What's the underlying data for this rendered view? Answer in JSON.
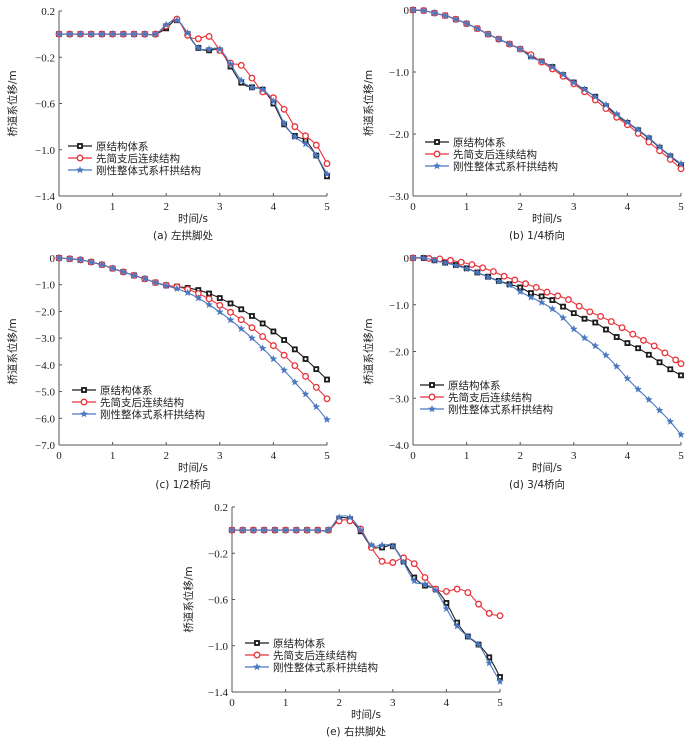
{
  "legend": [
    {
      "name": "原结构体系",
      "color": "#1a1a1a",
      "marker": "square"
    },
    {
      "name": "先简支后连续结构",
      "color": "#e8333a",
      "marker": "circle"
    },
    {
      "name": "刚性整体式系杆拱结构",
      "color": "#4a78c0",
      "marker": "star"
    }
  ],
  "chart_data": [
    {
      "type": "line",
      "caption": "(a)   左拱脚处",
      "xlabel": "时间/s",
      "ylabel": "桥道系位移/m",
      "xlim": [
        0,
        5
      ],
      "ylim": [
        -1.4,
        0.2
      ],
      "xticks": [
        0,
        1,
        2,
        3,
        4,
        5
      ],
      "xtick_labels": [
        "0",
        "1",
        "2",
        "3",
        "4",
        "5"
      ],
      "yticks": [
        0.2,
        -0.2,
        -0.6,
        -1.0,
        -1.4
      ],
      "ytick_labels": [
        "0.2",
        "−0.2",
        "−0.6",
        "−1.0",
        "−1.4"
      ],
      "legend_position": "lower-left",
      "x": [
        0,
        0.2,
        0.4,
        0.6,
        0.8,
        1.0,
        1.2,
        1.4,
        1.6,
        1.8,
        2.0,
        2.2,
        2.4,
        2.6,
        2.8,
        3.0,
        3.2,
        3.4,
        3.6,
        3.8,
        4.0,
        4.2,
        4.4,
        4.6,
        4.8,
        5.0
      ],
      "series": [
        {
          "name": "原结构体系",
          "values": [
            0,
            0,
            0,
            0,
            0,
            0,
            0,
            0,
            0,
            0,
            0.05,
            0.12,
            0.0,
            -0.12,
            -0.14,
            -0.14,
            -0.28,
            -0.42,
            -0.46,
            -0.48,
            -0.6,
            -0.78,
            -0.88,
            -0.92,
            -1.05,
            -1.23
          ]
        },
        {
          "name": "先简支后连续结构",
          "values": [
            0,
            0,
            0,
            0,
            0,
            0,
            0,
            0,
            0,
            0,
            0.07,
            0.13,
            -0.01,
            -0.04,
            -0.02,
            -0.14,
            -0.25,
            -0.27,
            -0.38,
            -0.5,
            -0.55,
            -0.65,
            -0.8,
            -0.88,
            -0.96,
            -1.12
          ]
        },
        {
          "name": "刚性整体式系杆拱结构",
          "values": [
            0,
            0,
            0,
            0,
            0,
            0,
            0,
            0,
            0,
            0,
            0.08,
            0.12,
            0.01,
            -0.12,
            -0.13,
            -0.13,
            -0.26,
            -0.4,
            -0.46,
            -0.48,
            -0.58,
            -0.77,
            -0.89,
            -0.95,
            -1.05,
            -1.21
          ]
        }
      ]
    },
    {
      "type": "line",
      "caption": "(b)   1/4桥向",
      "xlabel": "时间/s",
      "ylabel": "桥道系位移/m",
      "xlim": [
        0,
        5
      ],
      "ylim": [
        -3.0,
        0
      ],
      "xticks": [
        0,
        1,
        2,
        3,
        4,
        5
      ],
      "xtick_labels": [
        "0",
        "1",
        "2",
        "3",
        "4",
        "5"
      ],
      "yticks": [
        0,
        -1.0,
        -2.0,
        -3.0
      ],
      "ytick_labels": [
        "0",
        "−1.0",
        "−2.0",
        "−3.0"
      ],
      "legend_position": "lower-left",
      "x": [
        0,
        0.2,
        0.4,
        0.6,
        0.8,
        1.0,
        1.2,
        1.4,
        1.6,
        1.8,
        2.0,
        2.2,
        2.4,
        2.6,
        2.8,
        3.0,
        3.2,
        3.4,
        3.6,
        3.8,
        4.0,
        4.2,
        4.4,
        4.6,
        4.8,
        5.0
      ],
      "series": [
        {
          "name": "原结构体系",
          "values": [
            0,
            -0.01,
            -0.05,
            -0.09,
            -0.15,
            -0.22,
            -0.3,
            -0.39,
            -0.47,
            -0.55,
            -0.63,
            -0.74,
            -0.83,
            -0.92,
            -1.05,
            -1.17,
            -1.29,
            -1.4,
            -1.55,
            -1.7,
            -1.82,
            -1.94,
            -2.07,
            -2.22,
            -2.36,
            -2.5
          ]
        },
        {
          "name": "先简支后连续结构",
          "values": [
            0,
            -0.01,
            -0.05,
            -0.09,
            -0.15,
            -0.22,
            -0.3,
            -0.39,
            -0.47,
            -0.55,
            -0.63,
            -0.72,
            -0.84,
            -0.95,
            -1.07,
            -1.19,
            -1.32,
            -1.45,
            -1.59,
            -1.73,
            -1.85,
            -1.99,
            -2.13,
            -2.27,
            -2.41,
            -2.56
          ]
        },
        {
          "name": "刚性整体式系杆拱结构",
          "values": [
            0,
            -0.01,
            -0.05,
            -0.09,
            -0.15,
            -0.22,
            -0.3,
            -0.39,
            -0.47,
            -0.55,
            -0.63,
            -0.76,
            -0.83,
            -0.92,
            -1.04,
            -1.17,
            -1.28,
            -1.4,
            -1.53,
            -1.68,
            -1.81,
            -1.93,
            -2.06,
            -2.21,
            -2.35,
            -2.48
          ]
        }
      ]
    },
    {
      "type": "line",
      "caption": "(c)   1/2桥向",
      "xlabel": "时间/s",
      "ylabel": "桥道系位移/m",
      "xlim": [
        0,
        5
      ],
      "ylim": [
        -7.0,
        0
      ],
      "xticks": [
        0,
        1,
        2,
        3,
        4,
        5
      ],
      "xtick_labels": [
        "0",
        "1",
        "2",
        "3",
        "4",
        "5"
      ],
      "yticks": [
        0,
        -1.0,
        -2.0,
        -3.0,
        -4.0,
        -5.0,
        -6.0,
        -7.0
      ],
      "ytick_labels": [
        "0",
        "−1.0",
        "−2.0",
        "−3.0",
        "−4.0",
        "−5.0",
        "−6.0",
        "−7.0"
      ],
      "legend_position": "lower-left",
      "x": [
        0,
        0.2,
        0.4,
        0.6,
        0.8,
        1.0,
        1.2,
        1.4,
        1.6,
        1.8,
        2.0,
        2.2,
        2.4,
        2.6,
        2.8,
        3.0,
        3.2,
        3.4,
        3.6,
        3.8,
        4.0,
        4.2,
        4.4,
        4.6,
        4.8,
        5.0
      ],
      "series": [
        {
          "name": "原结构体系",
          "values": [
            0,
            -0.03,
            -0.07,
            -0.15,
            -0.25,
            -0.39,
            -0.52,
            -0.65,
            -0.78,
            -0.92,
            -1.02,
            -1.07,
            -1.12,
            -1.2,
            -1.33,
            -1.5,
            -1.7,
            -1.92,
            -2.17,
            -2.45,
            -2.75,
            -3.07,
            -3.42,
            -3.78,
            -4.16,
            -4.55
          ]
        },
        {
          "name": "先简支后连续结构",
          "values": [
            0,
            -0.03,
            -0.07,
            -0.15,
            -0.25,
            -0.39,
            -0.52,
            -0.65,
            -0.78,
            -0.92,
            -1.02,
            -1.08,
            -1.17,
            -1.33,
            -1.53,
            -1.77,
            -2.03,
            -2.31,
            -2.61,
            -2.94,
            -3.28,
            -3.64,
            -4.03,
            -4.43,
            -4.84,
            -5.27
          ]
        },
        {
          "name": "刚性整体式系杆拱结构",
          "values": [
            0,
            -0.03,
            -0.07,
            -0.15,
            -0.25,
            -0.39,
            -0.52,
            -0.65,
            -0.78,
            -0.92,
            -1.04,
            -1.15,
            -1.3,
            -1.5,
            -1.75,
            -2.02,
            -2.32,
            -2.65,
            -3.0,
            -3.38,
            -3.78,
            -4.2,
            -4.65,
            -5.1,
            -5.57,
            -6.05
          ]
        }
      ]
    },
    {
      "type": "line",
      "caption": "(d)   3/4桥向",
      "xlabel": "时间/s",
      "ylabel": "桥道系位移/m",
      "xlim": [
        0,
        5
      ],
      "ylim": [
        -4.0,
        0
      ],
      "xticks": [
        0,
        1,
        2,
        3,
        4,
        5
      ],
      "xtick_labels": [
        "0",
        "1",
        "2",
        "3",
        "4",
        "5"
      ],
      "yticks": [
        0,
        -1.0,
        -2.0,
        -3.0,
        -4.0
      ],
      "ytick_labels": [
        "0",
        "−1.0",
        "−2.0",
        "−3.0",
        "−4.0"
      ],
      "legend_position": "lower-left",
      "x": [
        0,
        0.2,
        0.4,
        0.6,
        0.8,
        1.0,
        1.2,
        1.4,
        1.6,
        1.8,
        2.0,
        2.2,
        2.4,
        2.6,
        2.8,
        3.0,
        3.2,
        3.4,
        3.6,
        3.8,
        4.0,
        4.2,
        4.4,
        4.6,
        4.8,
        5.0
      ],
      "series": [
        {
          "name": "原结构体系",
          "values": [
            0,
            0,
            -0.05,
            -0.1,
            -0.15,
            -0.22,
            -0.31,
            -0.4,
            -0.49,
            -0.56,
            -0.63,
            -0.75,
            -0.82,
            -0.9,
            -1.04,
            -1.18,
            -1.3,
            -1.38,
            -1.53,
            -1.69,
            -1.82,
            -1.93,
            -2.07,
            -2.23,
            -2.38,
            -2.51
          ]
        },
        {
          "name": "先简支后连续结构",
          "x": [
            0,
            0.3,
            0.5,
            0.7,
            0.9,
            1.1,
            1.3,
            1.5,
            1.7,
            1.9,
            2.1,
            2.3,
            2.5,
            2.7,
            2.9,
            3.1,
            3.3,
            3.5,
            3.7,
            3.9,
            4.1,
            4.3,
            4.5,
            4.7,
            4.9,
            5.0
          ],
          "values": [
            0,
            -0.01,
            -0.02,
            -0.05,
            -0.09,
            -0.14,
            -0.21,
            -0.29,
            -0.39,
            -0.47,
            -0.55,
            -0.63,
            -0.73,
            -0.81,
            -0.89,
            -1.03,
            -1.15,
            -1.25,
            -1.36,
            -1.49,
            -1.63,
            -1.76,
            -1.88,
            -2.03,
            -2.18,
            -2.26
          ]
        },
        {
          "name": "刚性整体式系杆拱结构",
          "values": [
            0,
            0,
            -0.05,
            -0.1,
            -0.16,
            -0.23,
            -0.31,
            -0.41,
            -0.5,
            -0.58,
            -0.72,
            -0.84,
            -0.95,
            -1.09,
            -1.28,
            -1.52,
            -1.71,
            -1.88,
            -2.08,
            -2.32,
            -2.58,
            -2.81,
            -3.03,
            -3.26,
            -3.5,
            -3.78
          ]
        }
      ]
    },
    {
      "type": "line",
      "caption": "(e)   右拱脚处",
      "xlabel": "时间/s",
      "ylabel": "桥道系位移/m",
      "xlim": [
        0,
        5
      ],
      "ylim": [
        -1.4,
        0.2
      ],
      "xticks": [
        0,
        1,
        2,
        3,
        4,
        5
      ],
      "xtick_labels": [
        "0",
        "1",
        "2",
        "3",
        "4",
        "5"
      ],
      "yticks": [
        0.2,
        -0.2,
        -0.6,
        -1.0,
        -1.4
      ],
      "ytick_labels": [
        "0.2",
        "−0.2",
        "−0.6",
        "−1.0",
        "−1.4"
      ],
      "legend_position": "lower-left",
      "x": [
        0,
        0.2,
        0.4,
        0.6,
        0.8,
        1.0,
        1.2,
        1.4,
        1.6,
        1.8,
        2.0,
        2.2,
        2.4,
        2.6,
        2.8,
        3.0,
        3.2,
        3.4,
        3.6,
        3.8,
        4.0,
        4.2,
        4.4,
        4.6,
        4.8,
        5.0
      ],
      "series": [
        {
          "name": "原结构体系",
          "values": [
            0,
            0,
            0,
            0,
            0,
            0,
            0,
            0,
            0,
            0,
            0.1,
            0.09,
            -0.01,
            -0.14,
            -0.15,
            -0.14,
            -0.27,
            -0.41,
            -0.48,
            -0.51,
            -0.63,
            -0.8,
            -0.92,
            -0.99,
            -1.1,
            -1.27
          ]
        },
        {
          "name": "先简支后连续结构",
          "values": [
            0,
            0,
            0,
            0,
            0,
            0,
            0,
            0,
            0,
            0,
            0.08,
            0.08,
            0.01,
            -0.15,
            -0.27,
            -0.28,
            -0.24,
            -0.29,
            -0.41,
            -0.51,
            -0.53,
            -0.51,
            -0.54,
            -0.64,
            -0.72,
            -0.74
          ]
        },
        {
          "name": "刚性整体式系杆拱结构",
          "values": [
            0,
            0,
            0,
            0,
            0,
            0,
            0,
            0,
            0,
            0,
            0.11,
            0.11,
            0.0,
            -0.13,
            -0.13,
            -0.14,
            -0.28,
            -0.44,
            -0.47,
            -0.52,
            -0.68,
            -0.83,
            -0.92,
            -0.99,
            -1.15,
            -1.31
          ]
        }
      ]
    }
  ]
}
